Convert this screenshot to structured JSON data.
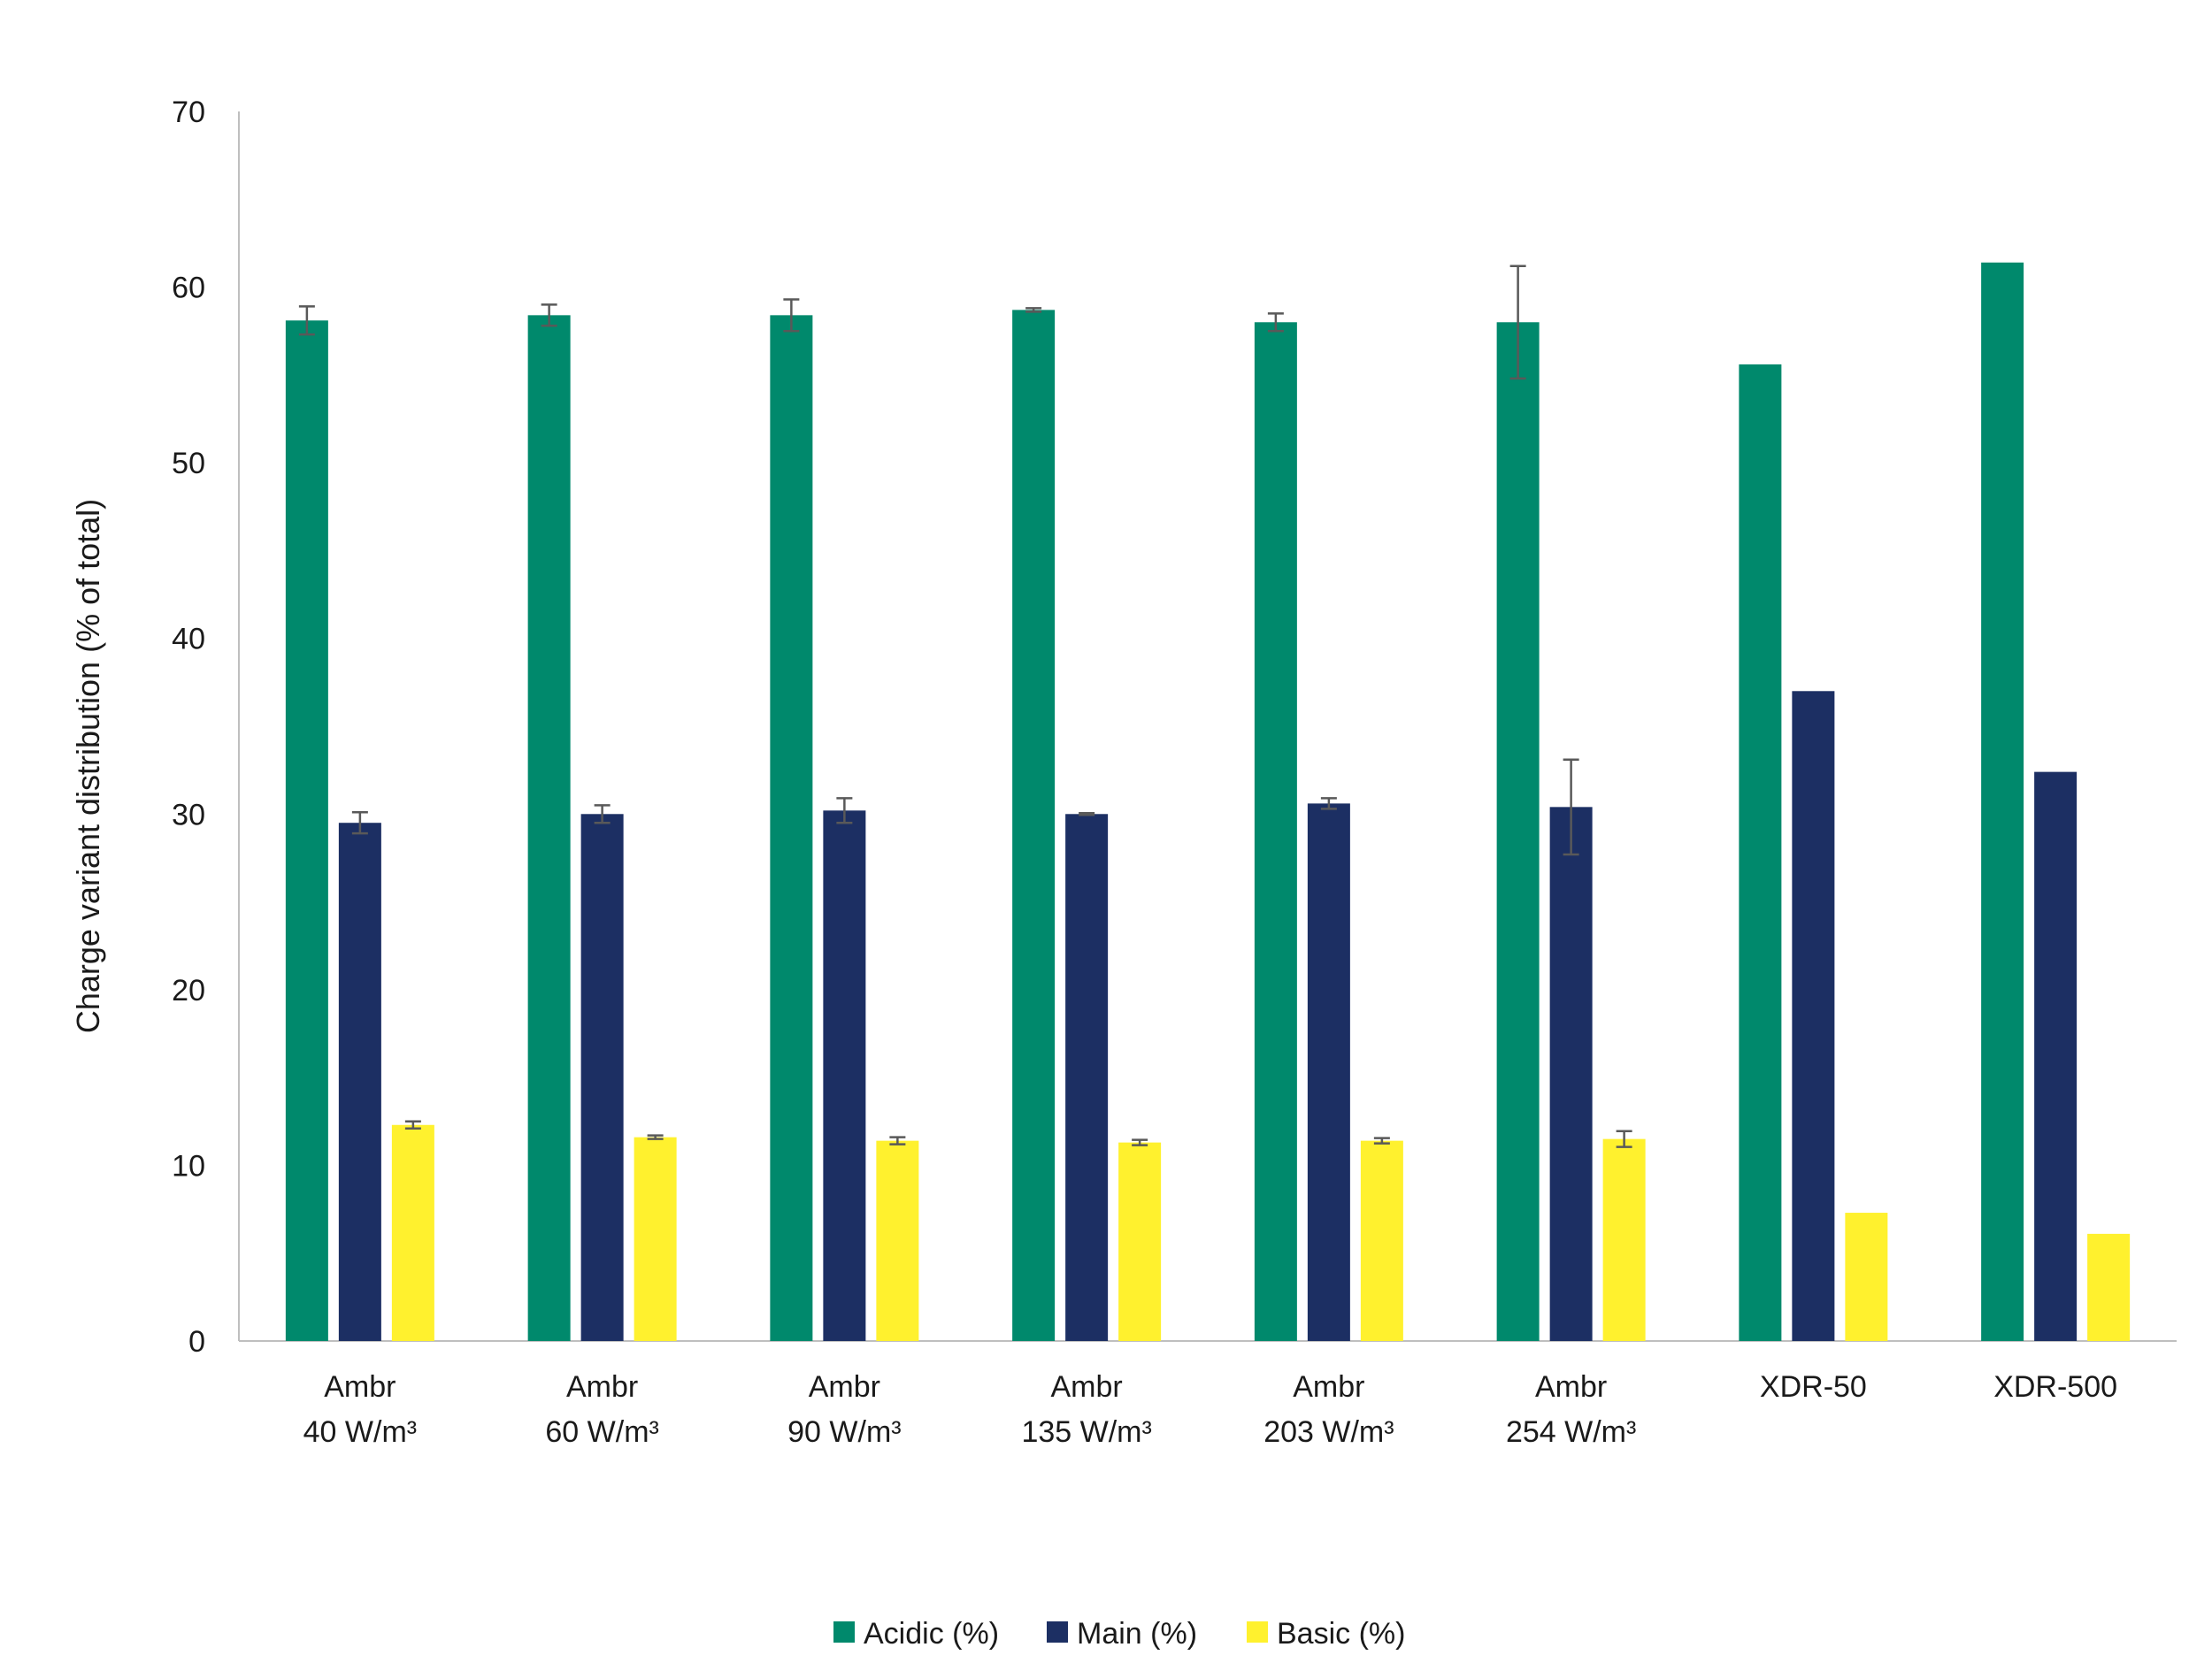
{
  "chart_data": {
    "type": "bar",
    "title": "",
    "xlabel": "",
    "ylabel": "Charge variant distribution (% of total)",
    "ylim": [
      0,
      70
    ],
    "yticks": [
      0,
      10,
      20,
      30,
      40,
      50,
      60,
      70
    ],
    "grid": false,
    "legend_position": "bottom",
    "categories": [
      [
        "Ambr",
        "40 W/m³"
      ],
      [
        "Ambr",
        "60 W/m³"
      ],
      [
        "Ambr",
        "90 W/m³"
      ],
      [
        "Ambr",
        "135 W/m³"
      ],
      [
        "Ambr",
        "203 W/m³"
      ],
      [
        "Ambr",
        "254 W/m³"
      ],
      [
        "XDR-50"
      ],
      [
        "XDR-500"
      ]
    ],
    "series": [
      {
        "name": "Acidic (%)",
        "color": "#00896C",
        "values": [
          58.1,
          58.4,
          58.4,
          58.7,
          58.0,
          58.0,
          55.6,
          61.4
        ],
        "errors": [
          0.8,
          0.6,
          0.9,
          0.1,
          0.5,
          3.2,
          null,
          null
        ]
      },
      {
        "name": "Main (%)",
        "color": "#1C2F63",
        "values": [
          29.5,
          30.0,
          30.2,
          30.0,
          30.6,
          30.4,
          37.0,
          32.4
        ],
        "errors": [
          0.6,
          0.5,
          0.7,
          0.05,
          0.3,
          2.7,
          null,
          null
        ]
      },
      {
        "name": "Basic (%)",
        "color": "#FFF12E",
        "values": [
          12.3,
          11.6,
          11.4,
          11.3,
          11.4,
          11.5,
          7.3,
          6.1
        ],
        "errors": [
          0.2,
          0.1,
          0.2,
          0.15,
          0.15,
          0.45,
          null,
          null
        ]
      }
    ]
  }
}
